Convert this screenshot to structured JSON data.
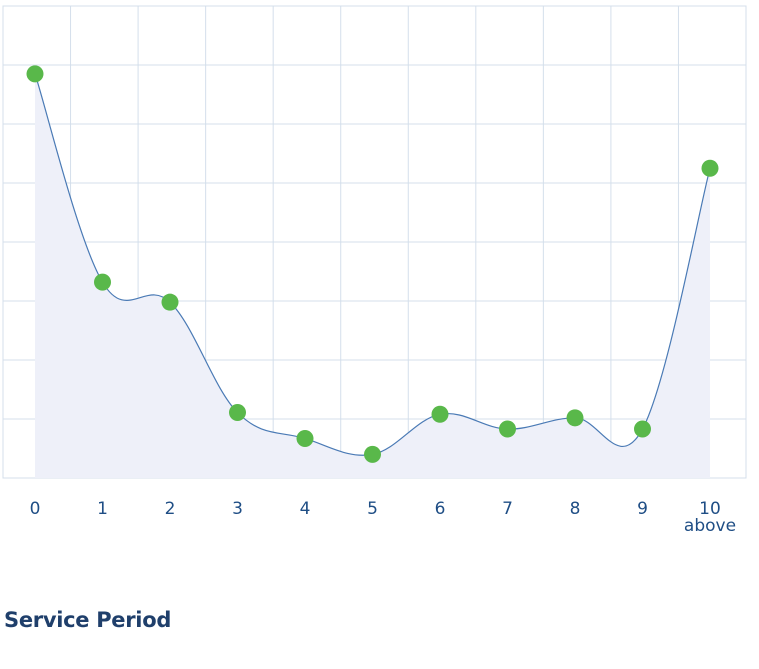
{
  "chart_data": {
    "type": "area",
    "categories": [
      "0",
      "1",
      "2",
      "3",
      "4",
      "5",
      "6",
      "7",
      "8",
      "9",
      "10\nabove"
    ],
    "values": [
      685,
      332,
      298,
      111,
      67,
      40,
      108,
      83,
      102,
      83,
      525
    ],
    "xlabel": "Service Period",
    "ylabel": "",
    "title": "",
    "ylim": [
      0,
      800
    ],
    "grid": true,
    "legend": "none",
    "colors": {
      "line": "#4a7ab5",
      "area": "#eef0f9",
      "point": "#59b84a",
      "grid": "#d4dfeb",
      "tick_text": "#1f4e85",
      "xlabel_text": "#1f3f6b"
    }
  }
}
